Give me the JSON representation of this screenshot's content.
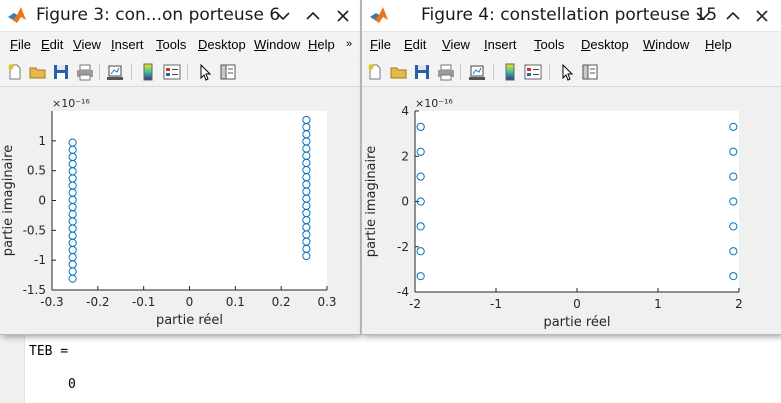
{
  "command_window": {
    "line1": "TEB =",
    "line2": "0"
  },
  "figures": [
    {
      "title": "Figure 3: con...on porteuse 6",
      "menus": [
        "File",
        "Edit",
        "View",
        "Insert",
        "Tools",
        "Desktop",
        "Window",
        "Help"
      ],
      "overflow": "»",
      "toolbar_icons": [
        "new-figure-icon",
        "open-file-icon",
        "save-icon",
        "print-icon",
        "link-plot-icon",
        "colorbar-icon",
        "legend-icon",
        "pointer-icon",
        "property-editor-icon"
      ],
      "chart_data": {
        "type": "scatter",
        "marker": "circle",
        "marker_color": "#0072bd",
        "xlabel": "partie réel",
        "ylabel": "partie imaginaire",
        "exponent_label": "×10⁻¹⁶",
        "xlim": [
          -0.3,
          0.3
        ],
        "ylim": [
          -1.5,
          1.5
        ],
        "xticks": [
          -0.3,
          -0.2,
          -0.1,
          0,
          0.1,
          0.2,
          0.3
        ],
        "xtick_labels": [
          "-0.3",
          "-0.2",
          "-0.1",
          "0",
          "0.1",
          "0.2",
          "0.3"
        ],
        "yticks": [
          -1.5,
          -1,
          -0.5,
          0,
          0.5,
          1
        ],
        "ytick_labels": [
          "-1.5",
          "-1",
          "-0.5",
          "0",
          "0.5",
          "1"
        ],
        "series": [
          {
            "x": [
              -0.255,
              -0.255,
              -0.255,
              -0.255,
              -0.255,
              -0.255,
              -0.255,
              -0.255,
              -0.255,
              -0.255,
              -0.255,
              -0.255,
              -0.255,
              -0.255,
              -0.255,
              -0.255,
              -0.255,
              -0.255,
              -0.255,
              -0.255
            ],
            "y": [
              0.97,
              0.85,
              0.73,
              0.61,
              0.49,
              0.37,
              0.25,
              0.13,
              0.01,
              -0.11,
              -0.23,
              -0.35,
              -0.47,
              -0.59,
              -0.71,
              -0.83,
              -0.95,
              -1.07,
              -1.19,
              -1.31
            ]
          },
          {
            "x": [
              0.255,
              0.255,
              0.255,
              0.255,
              0.255,
              0.255,
              0.255,
              0.255,
              0.255,
              0.255,
              0.255,
              0.255,
              0.255,
              0.255,
              0.255,
              0.255,
              0.255,
              0.255,
              0.255,
              0.255
            ],
            "y": [
              1.35,
              1.23,
              1.11,
              0.99,
              0.87,
              0.75,
              0.63,
              0.51,
              0.39,
              0.27,
              0.15,
              0.03,
              -0.09,
              -0.21,
              -0.33,
              -0.45,
              -0.57,
              -0.69,
              -0.81,
              -0.93
            ]
          }
        ]
      }
    },
    {
      "title": "Figure 4: constellation porteuse 15",
      "menus": [
        "File",
        "Edit",
        "View",
        "Insert",
        "Tools",
        "Desktop",
        "Window",
        "Help"
      ],
      "toolbar_icons": [
        "new-figure-icon",
        "open-file-icon",
        "save-icon",
        "print-icon",
        "link-plot-icon",
        "colorbar-icon",
        "legend-icon",
        "pointer-icon",
        "property-editor-icon"
      ],
      "chart_data": {
        "type": "scatter",
        "marker": "circle",
        "marker_color": "#0072bd",
        "xlabel": "partie réel",
        "ylabel": "partie imaginaire",
        "exponent_label": "×10⁻¹⁶",
        "xlim": [
          -2,
          2
        ],
        "ylim": [
          -4,
          4
        ],
        "xticks": [
          -2,
          -1,
          0,
          1,
          2
        ],
        "xtick_labels": [
          "-2",
          "-1",
          "0",
          "1",
          "2"
        ],
        "yticks": [
          -4,
          -2,
          0,
          2,
          4
        ],
        "ytick_labels": [
          "-4",
          "-2",
          "0",
          "2",
          "4"
        ],
        "series": [
          {
            "x": [
              -1.93,
              -1.93,
              -1.93,
              -1.93,
              -1.93,
              -1.93,
              -1.93
            ],
            "y": [
              3.3,
              2.2,
              1.1,
              0,
              -1.1,
              -2.2,
              -3.3
            ]
          },
          {
            "x": [
              1.93,
              1.93,
              1.93,
              1.93,
              1.93,
              1.93,
              1.93
            ],
            "y": [
              3.3,
              2.2,
              1.1,
              0,
              -1.1,
              -2.2,
              -3.3
            ]
          }
        ]
      }
    }
  ]
}
